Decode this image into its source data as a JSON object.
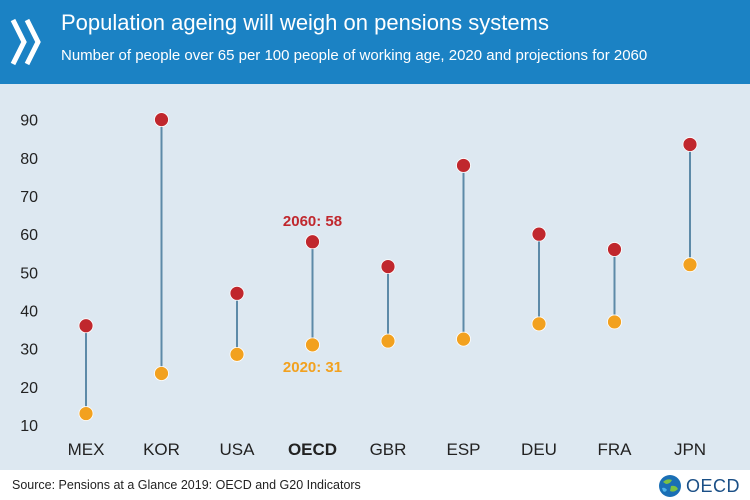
{
  "header": {
    "title": "Population ageing will weigh on pensions systems",
    "subtitle": "Number of people over 65 per 100 people of working age, 2020 and projections for 2060"
  },
  "footer": {
    "source": "Source: Pensions at a Glance 2019: OECD and G20 Indicators",
    "logo_text": "OECD"
  },
  "colors": {
    "header_bg": "#1b82c4",
    "chart_bg": "#dde8f1",
    "value_2060": "#c0272d",
    "value_2020": "#f2a11f",
    "connector": "#5d8aa8"
  },
  "chart_data": {
    "type": "scatter",
    "categories": [
      "MEX",
      "KOR",
      "USA",
      "OECD",
      "GBR",
      "ESP",
      "DEU",
      "FRA",
      "JPN"
    ],
    "highlight_category": "OECD",
    "series": [
      {
        "name": "2020",
        "color": "#f2a11f",
        "values": [
          13,
          23.5,
          28.5,
          31,
          32,
          32.5,
          36.5,
          37,
          52
        ]
      },
      {
        "name": "2060",
        "color": "#c0272d",
        "values": [
          36,
          90,
          44.5,
          58,
          51.5,
          78,
          60,
          56,
          83.5
        ]
      }
    ],
    "annotations": [
      {
        "text": "2060: 58",
        "category": "OECD",
        "series": "2060"
      },
      {
        "text": "2020: 31",
        "category": "OECD",
        "series": "2020"
      }
    ],
    "yticks": [
      10,
      20,
      30,
      40,
      50,
      60,
      70,
      80,
      90
    ],
    "ylim": [
      10,
      92
    ],
    "grid": false,
    "legend": "none"
  }
}
